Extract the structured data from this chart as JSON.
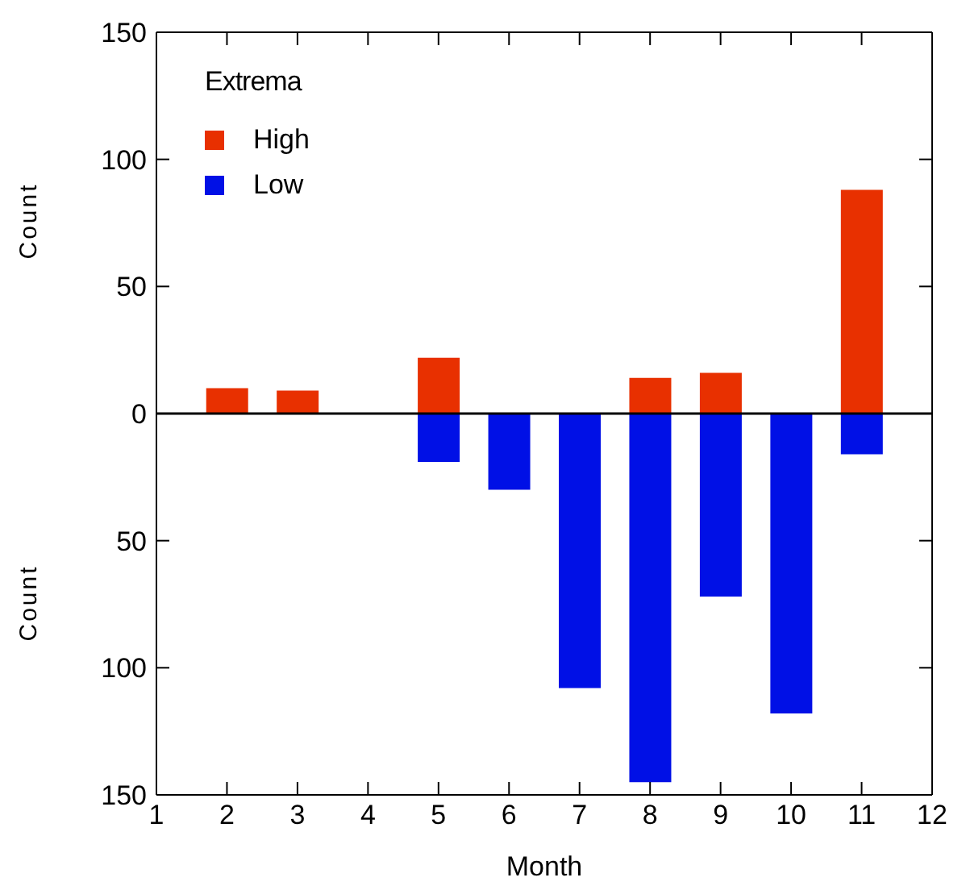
{
  "chart_data": {
    "type": "bar",
    "xlabel": "Month",
    "ylabel": "Count",
    "legend_title": "Extrema",
    "legend": "top left",
    "stacked": true,
    "x": [
      2,
      3,
      5,
      6,
      7,
      8,
      9,
      10,
      11
    ],
    "series": [
      {
        "name": "High",
        "color": "#e83000",
        "values": [
          10,
          9,
          22,
          0,
          0,
          14,
          16,
          0,
          88
        ]
      },
      {
        "name": "Low",
        "color": "#0010e6",
        "values": [
          null,
          null,
          -19,
          -30,
          -108,
          -145,
          -72,
          -118,
          -16
        ]
      }
    ],
    "xlim": [
      1,
      12
    ],
    "xticks": [
      1,
      2,
      3,
      4,
      5,
      6,
      7,
      8,
      9,
      10,
      11,
      12
    ],
    "ylim": [
      -150,
      150
    ],
    "yticks": [
      {
        "value": -150,
        "label": "150"
      },
      {
        "value": -100,
        "label": "100"
      },
      {
        "value": -50,
        "label": "50"
      },
      0,
      50,
      100,
      150
    ],
    "ref_lines": [
      {
        "axis": "y",
        "value": 0,
        "color": "#000000"
      }
    ]
  }
}
